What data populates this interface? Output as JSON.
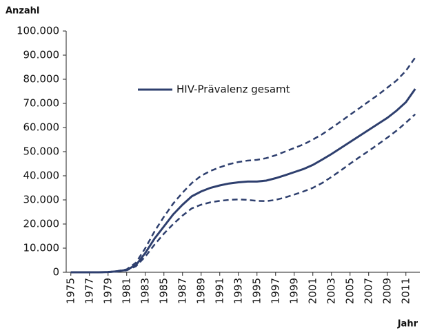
{
  "chart_data": {
    "type": "line",
    "y_label": "Anzahl",
    "x_label": "Jahr",
    "x": [
      1975,
      1976,
      1977,
      1978,
      1979,
      1980,
      1981,
      1982,
      1983,
      1984,
      1985,
      1986,
      1987,
      1988,
      1989,
      1990,
      1991,
      1992,
      1993,
      1994,
      1995,
      1996,
      1997,
      1998,
      1999,
      2000,
      2001,
      2002,
      2003,
      2004,
      2005,
      2006,
      2007,
      2008,
      2009,
      2010,
      2011,
      2012
    ],
    "xlim": [
      1974.5,
      2012.5
    ],
    "xticks": [
      1975,
      1977,
      1979,
      1981,
      1983,
      1985,
      1987,
      1989,
      1991,
      1993,
      1995,
      1997,
      1999,
      2001,
      2003,
      2005,
      2007,
      2009,
      2011
    ],
    "ylim": [
      0,
      100000
    ],
    "yticks": [
      0,
      {
        "value": 10000,
        "label": "10.000"
      },
      {
        "value": 20000,
        "label": "20.000"
      },
      {
        "value": 30000,
        "label": "30.000"
      },
      {
        "value": 40000,
        "label": "40.000"
      },
      {
        "value": 50000,
        "label": "50.000"
      },
      {
        "value": 60000,
        "label": "60.000"
      },
      {
        "value": 70000,
        "label": "70.000"
      },
      {
        "value": 80000,
        "label": "80.000"
      },
      {
        "value": 90000,
        "label": "90.000"
      },
      {
        "value": 100000,
        "label": "100.000"
      }
    ],
    "series": [
      {
        "name": "HIV-Prävalenz gesamt",
        "color": "#2e3f6e",
        "dash": false,
        "values": [
          0,
          0,
          0,
          0,
          100,
          400,
          1000,
          3000,
          8000,
          14000,
          19000,
          24000,
          28000,
          31500,
          33500,
          35000,
          36000,
          36800,
          37300,
          37600,
          37600,
          38000,
          39000,
          40200,
          41500,
          42800,
          44500,
          46700,
          49000,
          51500,
          54000,
          56500,
          59000,
          61500,
          64000,
          67000,
          70500,
          76000
        ]
      },
      {
        "color": "#2e3f6e",
        "dash": true,
        "values": [
          0,
          0,
          0,
          0,
          100,
          500,
          1200,
          4000,
          10000,
          17000,
          23000,
          28500,
          33000,
          37000,
          40000,
          42000,
          43500,
          44800,
          45700,
          46300,
          46600,
          47300,
          48500,
          50000,
          51500,
          53000,
          55000,
          57200,
          59800,
          62500,
          65300,
          68000,
          70800,
          73500,
          76500,
          79500,
          83500,
          89000
        ]
      },
      {
        "color": "#2e3f6e",
        "dash": true,
        "values": [
          0,
          0,
          0,
          0,
          100,
          300,
          800,
          2500,
          6500,
          11500,
          16000,
          20000,
          23500,
          26500,
          28000,
          29000,
          29600,
          30000,
          30200,
          30000,
          29600,
          29500,
          30000,
          31000,
          32200,
          33500,
          35000,
          37000,
          39500,
          42200,
          45000,
          47700,
          50300,
          53000,
          55800,
          58700,
          62000,
          65500
        ]
      }
    ]
  }
}
